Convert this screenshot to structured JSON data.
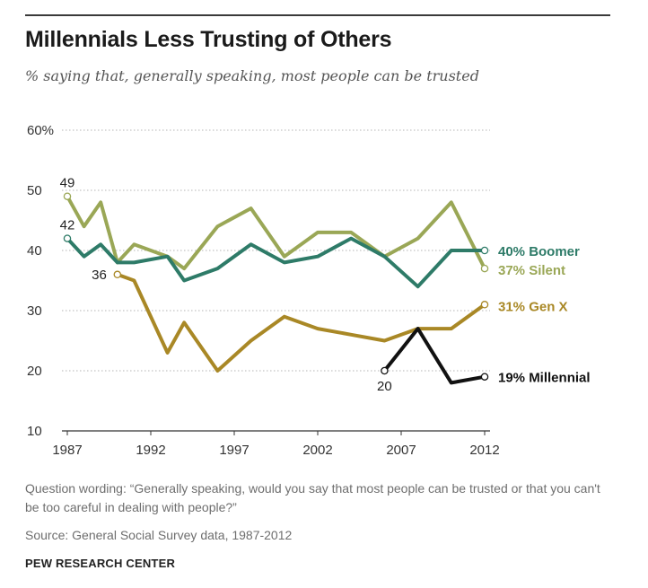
{
  "title": "Millennials Less Trusting of Others",
  "subtitle": "% saying that, generally speaking, most people can be trusted",
  "footer": {
    "question": "Question wording: “Generally speaking, would you say that most people can be trusted or that you can't be too careful in dealing with people?”",
    "source": "Source: General Social Survey data, 1987-2012",
    "brand": "PEW RESEARCH CENTER"
  },
  "chart_data": {
    "type": "line",
    "title": "Millennials Less Trusting of Others",
    "subtitle": "% saying that, generally speaking, most people can be trusted",
    "xlabel": "",
    "ylabel": "",
    "xlim": [
      1987,
      2012
    ],
    "ylim": [
      10,
      60
    ],
    "xticks": [
      {
        "value": 1987,
        "label": "1987"
      },
      {
        "value": 1992,
        "label": "1992"
      },
      {
        "value": 1997,
        "label": "1997"
      },
      {
        "value": 2002,
        "label": "2002"
      },
      {
        "value": 2007,
        "label": "2007"
      },
      {
        "value": 2012,
        "label": "2012"
      }
    ],
    "yticks": [
      {
        "value": 60,
        "label": "60%"
      },
      {
        "value": 50,
        "label": "50"
      },
      {
        "value": 40,
        "label": "40"
      },
      {
        "value": 30,
        "label": "30"
      },
      {
        "value": 20,
        "label": "20"
      },
      {
        "value": 10,
        "label": "10"
      }
    ],
    "grid": "horizontal dotted",
    "series": [
      {
        "name": "Silent",
        "end_label": "37% Silent",
        "color": "#9aa756",
        "points": [
          [
            1987,
            49
          ],
          [
            1988,
            44
          ],
          [
            1989,
            48
          ],
          [
            1990,
            38
          ],
          [
            1991,
            41
          ],
          [
            1993,
            39
          ],
          [
            1994,
            37
          ],
          [
            1996,
            44
          ],
          [
            1998,
            47
          ],
          [
            2000,
            39
          ],
          [
            2002,
            43
          ],
          [
            2004,
            43
          ],
          [
            2006,
            39
          ],
          [
            2008,
            42
          ],
          [
            2010,
            48
          ],
          [
            2012,
            37
          ]
        ]
      },
      {
        "name": "Boomer",
        "end_label": "40% Boomer",
        "color": "#2e7b68",
        "points": [
          [
            1987,
            42
          ],
          [
            1988,
            39
          ],
          [
            1989,
            41
          ],
          [
            1990,
            38
          ],
          [
            1991,
            38
          ],
          [
            1993,
            39
          ],
          [
            1994,
            35
          ],
          [
            1996,
            37
          ],
          [
            1998,
            41
          ],
          [
            2000,
            38
          ],
          [
            2002,
            39
          ],
          [
            2004,
            42
          ],
          [
            2006,
            39
          ],
          [
            2008,
            34
          ],
          [
            2010,
            40
          ],
          [
            2012,
            40
          ]
        ]
      },
      {
        "name": "Gen X",
        "end_label": "31% Gen X",
        "color": "#a98826",
        "points": [
          [
            1990,
            36
          ],
          [
            1991,
            35
          ],
          [
            1993,
            23
          ],
          [
            1994,
            28
          ],
          [
            1996,
            20
          ],
          [
            1998,
            25
          ],
          [
            2000,
            29
          ],
          [
            2002,
            27
          ],
          [
            2004,
            26
          ],
          [
            2006,
            25
          ],
          [
            2008,
            27
          ],
          [
            2010,
            27
          ],
          [
            2012,
            31
          ]
        ]
      },
      {
        "name": "Millennial",
        "end_label": "19% Millennial",
        "color": "#111111",
        "points": [
          [
            2006,
            20
          ],
          [
            2008,
            27
          ],
          [
            2010,
            18
          ],
          [
            2012,
            19
          ]
        ]
      }
    ],
    "annotations": [
      {
        "series": "Silent",
        "x": 1987,
        "y": 49,
        "text": "49"
      },
      {
        "series": "Boomer",
        "x": 1987,
        "y": 42,
        "text": "42"
      },
      {
        "series": "Gen X",
        "x": 1990,
        "y": 36,
        "text": "36"
      },
      {
        "series": "Millennial",
        "x": 2006,
        "y": 20,
        "text": "20"
      }
    ]
  }
}
